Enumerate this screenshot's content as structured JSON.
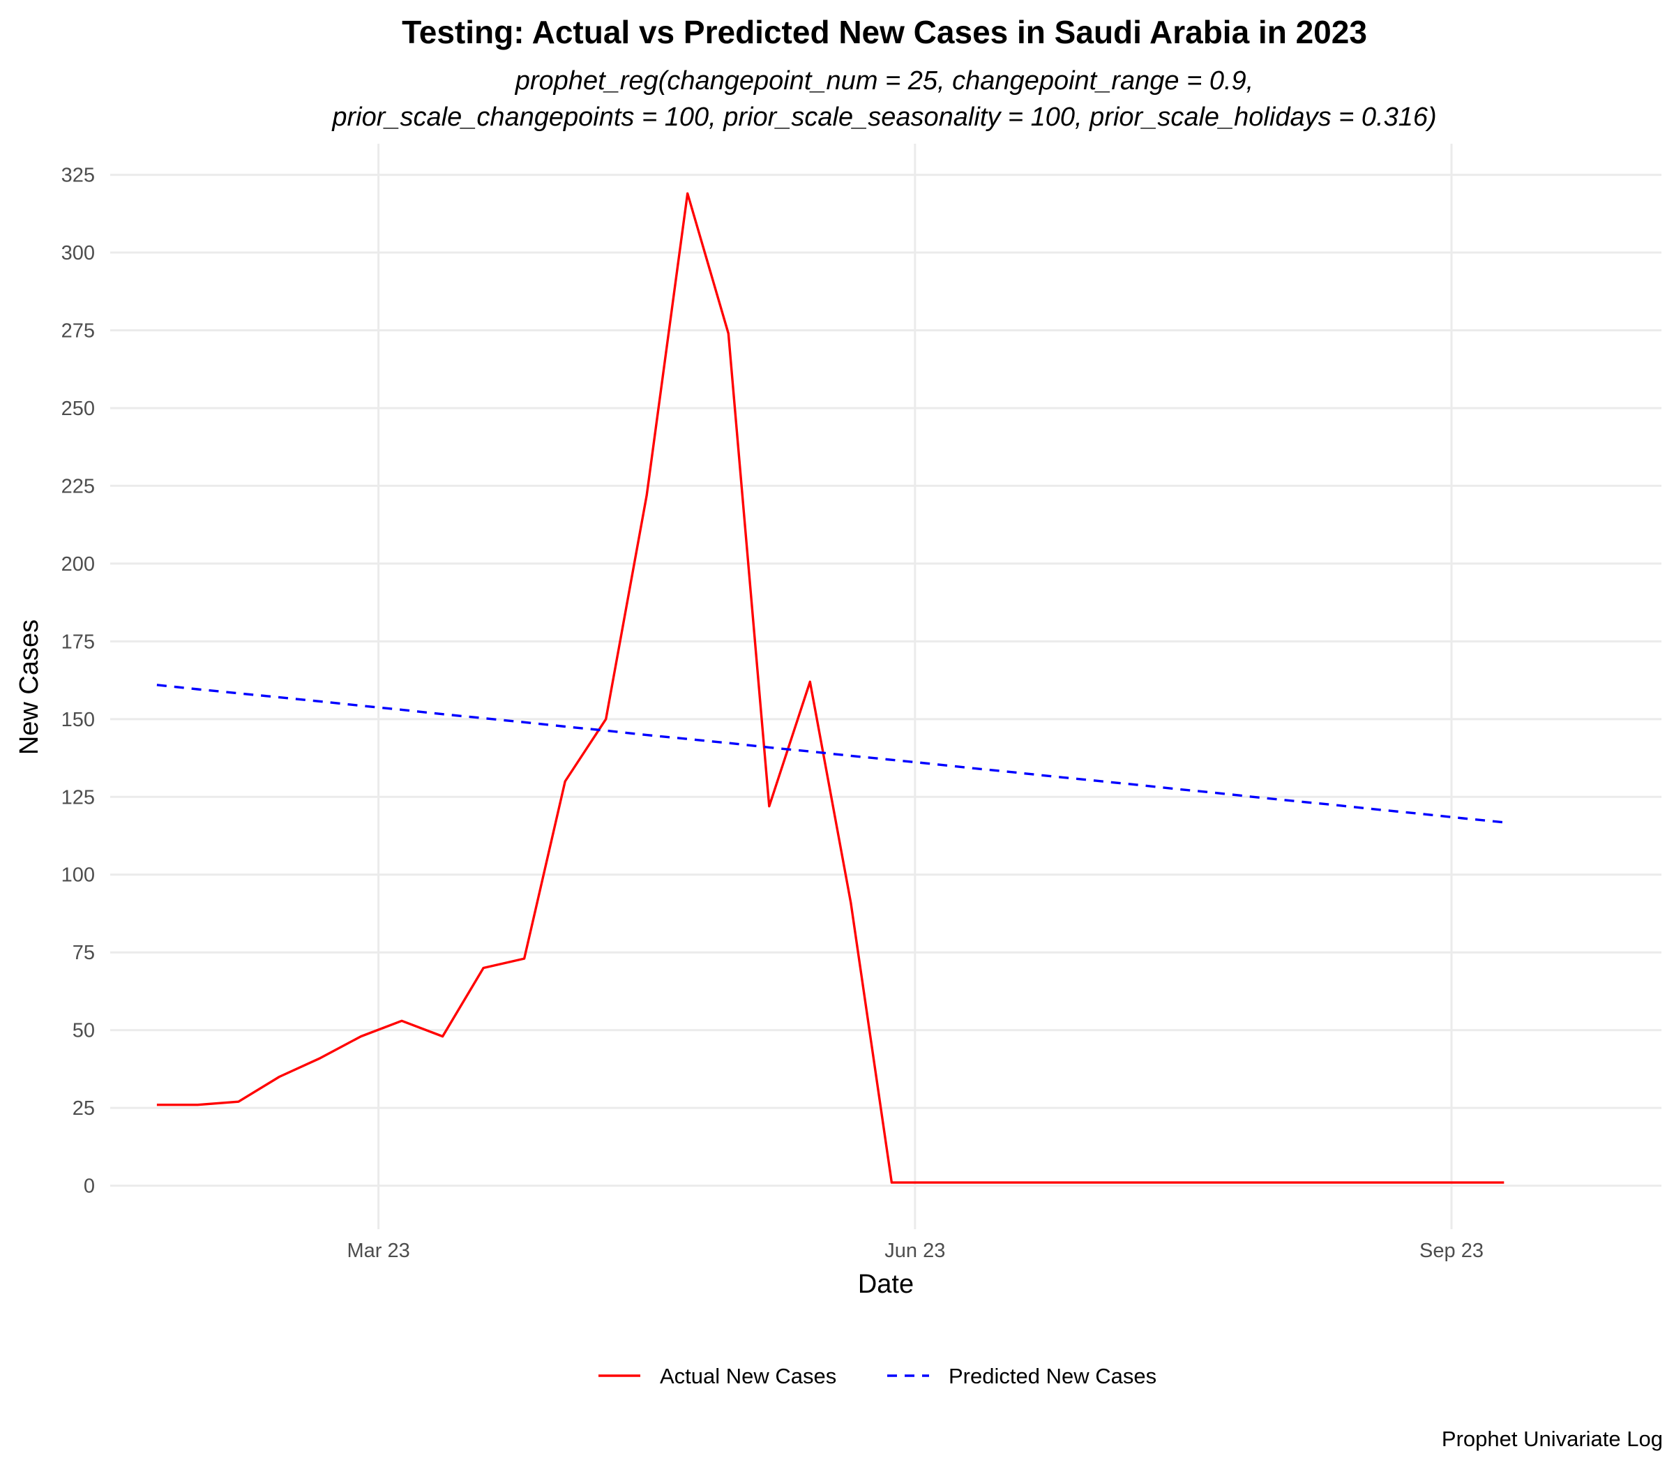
{
  "chart_data": {
    "type": "line",
    "title": "Testing: Actual vs Predicted New Cases in Saudi Arabia in 2023",
    "subtitle_lines": [
      "prophet_reg(changepoint_num = 25, changepoint_range = 0.9,",
      "prior_scale_changepoints = 100, prior_scale_seasonality = 100, prior_scale_holidays = 0.316)"
    ],
    "xlabel": "Date",
    "ylabel": "New Cases",
    "caption": "Prophet Univariate Log",
    "legend_position": "bottom",
    "grid": true,
    "xlim": [
      "2023-01-14",
      "2023-10-07"
    ],
    "ylim": [
      -14,
      335
    ],
    "x_ticks": [
      {
        "date": "2023-03-01",
        "label": "Mar 23"
      },
      {
        "date": "2023-06-01",
        "label": "Jun 23"
      },
      {
        "date": "2023-09-01",
        "label": "Sep 23"
      }
    ],
    "y_ticks": [
      0,
      25,
      50,
      75,
      100,
      125,
      150,
      175,
      200,
      225,
      250,
      275,
      300,
      325
    ],
    "x": [
      "2023-01-22",
      "2023-01-29",
      "2023-02-05",
      "2023-02-12",
      "2023-02-19",
      "2023-02-26",
      "2023-03-05",
      "2023-03-12",
      "2023-03-19",
      "2023-03-26",
      "2023-04-02",
      "2023-04-09",
      "2023-04-16",
      "2023-04-23",
      "2023-04-30",
      "2023-05-07",
      "2023-05-14",
      "2023-05-21",
      "2023-05-28",
      "2023-06-04",
      "2023-06-11",
      "2023-06-18",
      "2023-06-25",
      "2023-07-02",
      "2023-07-09",
      "2023-07-16",
      "2023-07-23",
      "2023-07-30",
      "2023-08-06",
      "2023-08-13",
      "2023-08-20",
      "2023-08-27",
      "2023-09-03",
      "2023-09-10"
    ],
    "series": [
      {
        "name": "Actual New Cases",
        "color": "#ff0000",
        "style": "solid",
        "values": [
          26,
          26,
          27,
          35,
          41,
          48,
          53,
          48,
          70,
          73,
          130,
          150,
          222,
          319,
          274,
          122,
          162,
          91,
          1,
          1,
          1,
          1,
          1,
          1,
          1,
          1,
          1,
          1,
          1,
          1,
          1,
          1,
          1,
          1
        ]
      },
      {
        "name": "Predicted New Cases",
        "color": "#0000ff",
        "style": "dashed",
        "values": [
          161,
          159.6,
          158.3,
          157,
          155.7,
          154.3,
          153,
          151.6,
          150.3,
          149,
          147.6,
          146.3,
          144.9,
          143.6,
          142.3,
          140.9,
          139.6,
          138.2,
          136.9,
          135.6,
          134.2,
          132.9,
          131.5,
          130.2,
          128.9,
          127.5,
          126.2,
          124.8,
          123.5,
          122.2,
          120.8,
          119.5,
          118.1,
          116.8
        ]
      }
    ]
  }
}
